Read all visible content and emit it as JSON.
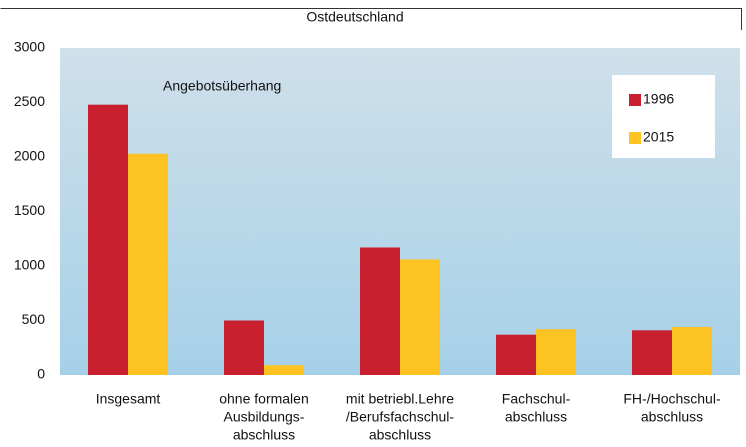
{
  "chart_data": {
    "type": "bar",
    "title": "Ostdeutschland",
    "annotation": "Angebotsüberhang",
    "categories": [
      [
        "Insgesamt"
      ],
      [
        "ohne formalen",
        "Ausbildungs-",
        "abschluss"
      ],
      [
        "mit betriebl.Lehre",
        "/Berufsfachschul-",
        "abschluss"
      ],
      [
        "Fachschul-",
        "abschluss"
      ],
      [
        "FH-/Hochschul-",
        "abschluss"
      ]
    ],
    "series": [
      {
        "name": "1996",
        "color": "#c8202f",
        "values": [
          2480,
          500,
          1170,
          370,
          410
        ]
      },
      {
        "name": "2015",
        "color": "#fdc322",
        "values": [
          2030,
          90,
          1060,
          420,
          440
        ]
      }
    ],
    "ylim": [
      0,
      3000
    ],
    "yticks": [
      0,
      500,
      1000,
      1500,
      2000,
      2500,
      3000
    ],
    "grid": false,
    "legend": "upper right"
  }
}
